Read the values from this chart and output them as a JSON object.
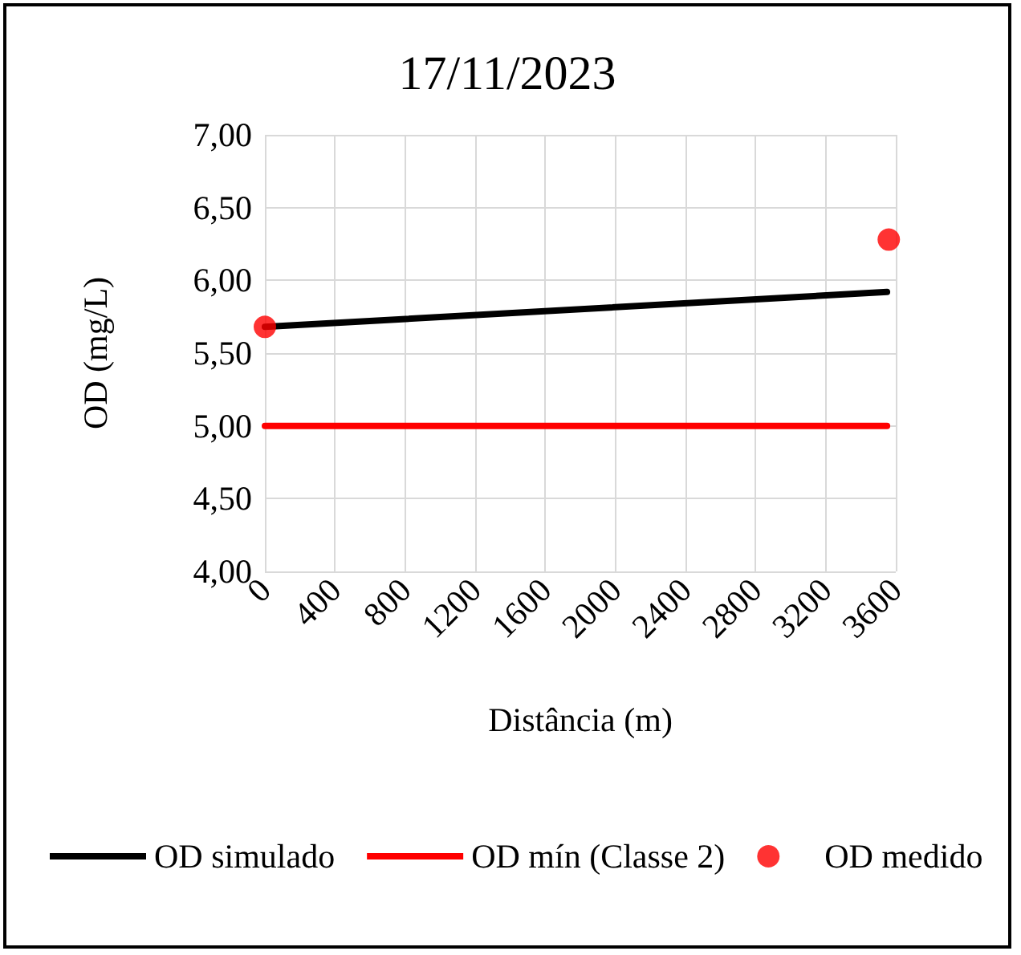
{
  "chart_data": {
    "type": "line",
    "title": "17/11/2023",
    "xlabel": "Distância (m)",
    "ylabel": "OD (mg/L)",
    "xlim": [
      0,
      3600
    ],
    "xticks": [
      0,
      400,
      800,
      1200,
      1600,
      2000,
      2400,
      2800,
      3200,
      3600
    ],
    "ylim": [
      4,
      7
    ],
    "yticks": [
      {
        "value": 4,
        "label": "4,00"
      },
      {
        "value": 4.5,
        "label": "4,50"
      },
      {
        "value": 5,
        "label": "5,00"
      },
      {
        "value": 5.5,
        "label": "5,50"
      },
      {
        "value": 6,
        "label": "6,00"
      },
      {
        "value": 6.5,
        "label": "6,50"
      },
      {
        "value": 7,
        "label": "7,00"
      }
    ],
    "grid": true,
    "legend": "bottom",
    "line_style": "solid",
    "series": [
      {
        "name": "OD simulado",
        "color": "#000000",
        "marker": "none",
        "x": [
          0,
          3550
        ],
        "values": [
          5.68,
          5.92
        ]
      },
      {
        "name": "OD mín (Classe 2)",
        "color": "#ff0000",
        "marker": "none",
        "x": [
          0,
          3550
        ],
        "values": [
          5.0,
          5.0
        ]
      },
      {
        "name": "OD medido",
        "type": "scatter",
        "color": "#ff0000",
        "marker": "circle",
        "x": [
          0,
          3560
        ],
        "values": [
          5.68,
          6.28
        ]
      }
    ]
  }
}
